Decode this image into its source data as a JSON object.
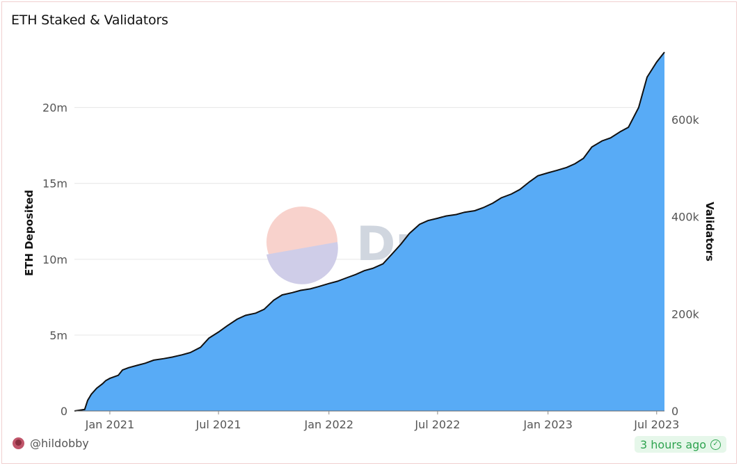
{
  "title": "ETH Staked & Validators",
  "footer": {
    "user": "@hildobby",
    "updated": "3 hours ago"
  },
  "watermark": "Dune",
  "colors": {
    "area_fill": "#58abf6",
    "line": "#111111",
    "badge_text": "#2ea34f",
    "badge_bg": "#e6f7ea"
  },
  "chart_data": {
    "type": "area",
    "title": "ETH Staked & Validators",
    "xlabel": "",
    "ylabel": "ETH Deposited",
    "y2label": "Validators",
    "x_ticks": [
      "Jan 2021",
      "Jul 2021",
      "Jan 2022",
      "Jul 2022",
      "Jan 2023",
      "Jul 2023"
    ],
    "y_ticks": [
      "0",
      "5m",
      "10m",
      "15m",
      "20m"
    ],
    "y2_ticks": [
      "0",
      "200k",
      "400k",
      "600k"
    ],
    "ylim": [
      0,
      23650000
    ],
    "y2lim": [
      0,
      739000
    ],
    "xlim": [
      "2020-11-03",
      "2023-07-14"
    ],
    "grid": true,
    "series": [
      {
        "values_axis": "left",
        "x": [
          "2020-11-03",
          "2020-11-20",
          "2020-11-25",
          "2020-12-01",
          "2020-12-10",
          "2020-12-20",
          "2020-12-25",
          "2021-01-01",
          "2021-01-15",
          "2021-01-22",
          "2021-02-01",
          "2021-02-15",
          "2021-03-01",
          "2021-03-15",
          "2021-04-01",
          "2021-04-15",
          "2021-05-01",
          "2021-05-15",
          "2021-06-01",
          "2021-06-15",
          "2021-07-01",
          "2021-07-15",
          "2021-08-01",
          "2021-08-15",
          "2021-09-01",
          "2021-09-15",
          "2021-10-01",
          "2021-10-15",
          "2021-11-01",
          "2021-11-15",
          "2021-12-01",
          "2021-12-15",
          "2022-01-01",
          "2022-01-15",
          "2022-02-01",
          "2022-02-15",
          "2022-03-01",
          "2022-03-15",
          "2022-04-01",
          "2022-04-15",
          "2022-05-01",
          "2022-05-15",
          "2022-06-01",
          "2022-06-15",
          "2022-07-01",
          "2022-07-15",
          "2022-08-01",
          "2022-08-15",
          "2022-09-01",
          "2022-09-15",
          "2022-10-01",
          "2022-10-15",
          "2022-11-01",
          "2022-11-15",
          "2022-12-01",
          "2022-12-15",
          "2023-01-01",
          "2023-01-15",
          "2023-02-01",
          "2023-02-15",
          "2023-03-01",
          "2023-03-15",
          "2023-04-01",
          "2023-04-15",
          "2023-05-01",
          "2023-05-15",
          "2023-06-01",
          "2023-06-15",
          "2023-07-01",
          "2023-07-14"
        ],
        "values": [
          0,
          100000,
          700000,
          1100000,
          1500000,
          1800000,
          2000000,
          2150000,
          2350000,
          2700000,
          2850000,
          3000000,
          3150000,
          3350000,
          3450000,
          3550000,
          3700000,
          3850000,
          4200000,
          4800000,
          5200000,
          5600000,
          6050000,
          6300000,
          6450000,
          6700000,
          7300000,
          7650000,
          7800000,
          7950000,
          8050000,
          8200000,
          8400000,
          8550000,
          8800000,
          9000000,
          9250000,
          9400000,
          9700000,
          10300000,
          11000000,
          11700000,
          12300000,
          12550000,
          12700000,
          12850000,
          12950000,
          13100000,
          13200000,
          13400000,
          13700000,
          14050000,
          14300000,
          14600000,
          15100000,
          15500000,
          15700000,
          15850000,
          16050000,
          16300000,
          16650000,
          17400000,
          17800000,
          18000000,
          18400000,
          18700000,
          20000000,
          22000000,
          23000000,
          23650000
        ]
      }
    ]
  }
}
